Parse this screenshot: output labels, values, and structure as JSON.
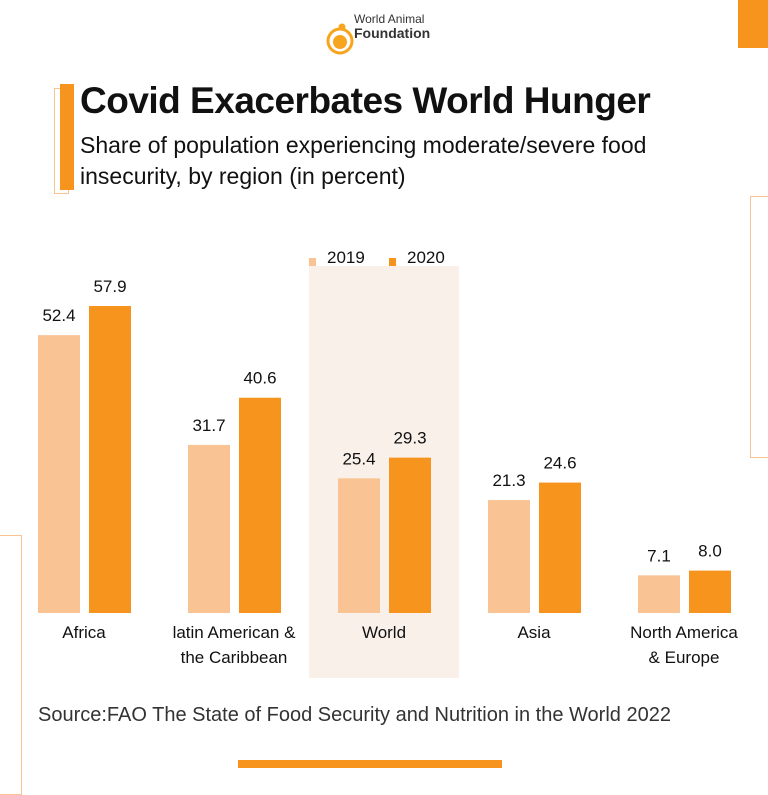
{
  "logo": {
    "line1": "World Animal",
    "line2": "Foundation"
  },
  "title": "Covid Exacerbates World Hunger",
  "subtitle": "Share of population experiencing moderate/severe food insecurity, by region (in percent)",
  "source": "Source:FAO  The State of Food Security and Nutrition in the World 2022",
  "colors": {
    "series_2019": "#F9C394",
    "series_2020": "#F7941E",
    "highlight": "#FAF0EA",
    "accent": "#F7941E"
  },
  "chart_data": {
    "type": "bar",
    "title": "Covid Exacerbates World Hunger",
    "subtitle": "Share of population experiencing moderate/severe food insecurity, by region (in percent)",
    "categories": [
      [
        "Africa"
      ],
      [
        "latin American &",
        "the Caribbean"
      ],
      [
        "World"
      ],
      [
        "Asia"
      ],
      [
        "North America",
        "& Europe"
      ]
    ],
    "series": [
      {
        "name": "2019",
        "values": [
          52.4,
          31.7,
          25.4,
          21.3,
          7.1
        ],
        "labels": [
          "52.4",
          "31.7",
          "25.4",
          "21.3",
          "7.1"
        ]
      },
      {
        "name": "2020",
        "values": [
          57.9,
          40.6,
          29.3,
          24.6,
          8.0
        ],
        "labels": [
          "57.9",
          "40.6",
          "29.3",
          "24.6",
          "8.0"
        ]
      }
    ],
    "highlighted_category": "World",
    "legend_position": "top-center",
    "grid": false,
    "ylim": [
      0,
      60
    ]
  }
}
